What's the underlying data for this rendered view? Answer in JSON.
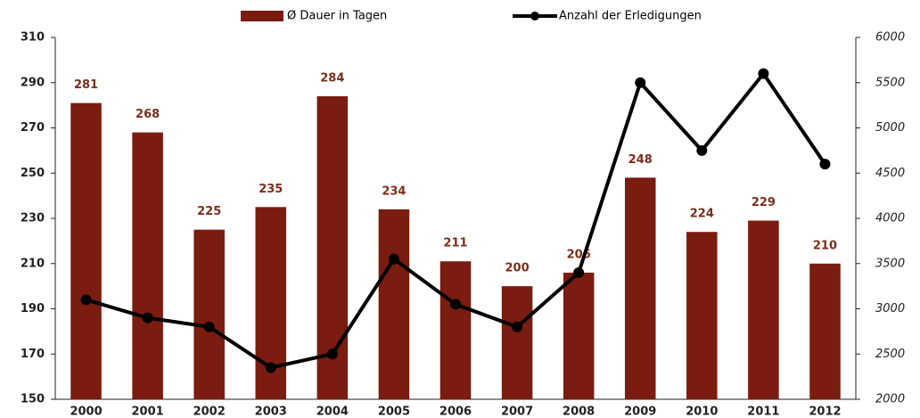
{
  "chart_data": {
    "type": "bar_line",
    "categories": [
      "2000",
      "2001",
      "2002",
      "2003",
      "2004",
      "2005",
      "2006",
      "2007",
      "2008",
      "2009",
      "2010",
      "2011",
      "2012"
    ],
    "series": [
      {
        "name": "Ø Dauer in Tagen",
        "type": "bar",
        "color": "#7a1c10",
        "values": [
          281,
          268,
          225,
          235,
          284,
          234,
          211,
          200,
          206,
          248,
          224,
          229,
          210
        ]
      },
      {
        "name": "Anzahl der Erledigungen",
        "type": "line",
        "axis": "y2",
        "color": "#000000",
        "values": [
          3100,
          2900,
          2800,
          2350,
          2500,
          3550,
          3050,
          2800,
          3400,
          5500,
          4750,
          5600,
          4600
        ]
      }
    ],
    "ylim": [
      150,
      310
    ],
    "yticks": [
      150,
      170,
      190,
      210,
      230,
      250,
      270,
      290,
      310
    ],
    "y2lim": [
      2000,
      6000
    ],
    "y2ticks": [
      2000,
      2500,
      3000,
      3500,
      4000,
      4500,
      5000,
      5500,
      6000
    ],
    "legend": "top"
  }
}
